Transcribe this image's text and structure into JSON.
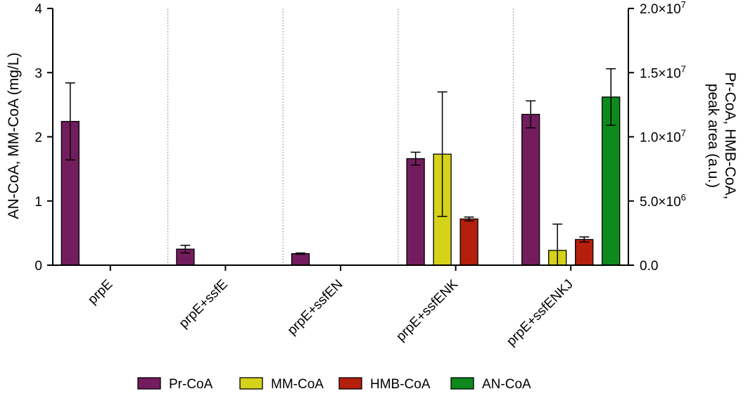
{
  "chart_data": {
    "type": "bar",
    "categories": [
      "prpE",
      "prpE+ssfE",
      "prpE+ssfEN",
      "prpE+ssfENK",
      "prpE+ssfENKJ"
    ],
    "left_axis": {
      "label": "AN-CoA, MM-CoA (mg/L)",
      "ylim": [
        0,
        4
      ],
      "ticks": [
        "0",
        "1",
        "2",
        "3",
        "4"
      ]
    },
    "right_axis": {
      "label_lines": [
        "Pr-CoA, HMB-CoA,",
        "peak area (a.u.)"
      ],
      "ylim": [
        0,
        20000000
      ],
      "ticks": [
        {
          "value": 0,
          "mantissa": "0.0",
          "exp": ""
        },
        {
          "value": 5000000,
          "mantissa": "5.0×10",
          "exp": "6"
        },
        {
          "value": 10000000,
          "mantissa": "1.0×10",
          "exp": "7"
        },
        {
          "value": 15000000,
          "mantissa": "1.5×10",
          "exp": "7"
        },
        {
          "value": 20000000,
          "mantissa": "2.0×10",
          "exp": "7"
        }
      ]
    },
    "series": [
      {
        "name": "Pr-CoA",
        "axis": "right",
        "color": "#741d5e",
        "values": [
          11200000,
          1250000,
          900000,
          8300000,
          11750000
        ],
        "errors": [
          3000000,
          300000,
          50000,
          500000,
          1050000
        ]
      },
      {
        "name": "MM-CoA",
        "axis": "left",
        "color": "#d6d21a",
        "values": [
          0,
          0,
          0,
          1.73,
          0.23
        ],
        "errors": [
          0,
          0,
          0,
          0.97,
          0.41
        ]
      },
      {
        "name": "HMB-CoA",
        "axis": "right",
        "color": "#b5200d",
        "values": [
          0,
          0,
          0,
          3600000,
          2000000
        ],
        "errors": [
          0,
          0,
          0,
          150000,
          200000
        ]
      },
      {
        "name": "AN-CoA",
        "axis": "left",
        "color": "#0e8a1c",
        "values": [
          0,
          0,
          0,
          0,
          2.62
        ],
        "errors": [
          0,
          0,
          0,
          0,
          0.44
        ]
      }
    ],
    "legend_position": "bottom",
    "grid": "vertical dotted separators between categories"
  }
}
